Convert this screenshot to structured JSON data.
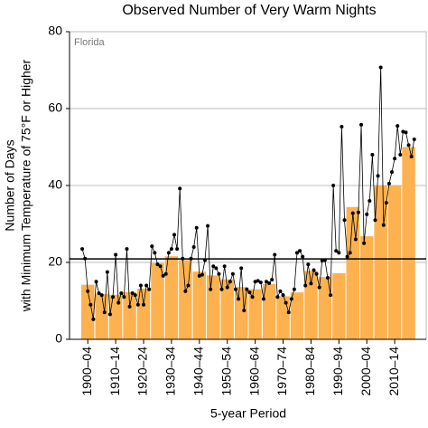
{
  "chart_data": {
    "type": "bar",
    "title": "Observed Number of Very Warm Nights",
    "annotation": "Florida",
    "xlabel": "5-year Period",
    "ylabel": [
      "Number of Days",
      "with Minimum Temperature of 75°F or Higher"
    ],
    "categories": [
      "1900–04",
      null,
      "1910–14",
      null,
      "1920–24",
      null,
      "1930–34",
      null,
      "1940–44",
      null,
      "1950–54",
      null,
      "1960–64",
      null,
      "1970–74",
      null,
      "1980–84",
      null,
      "1990–94",
      null,
      "2000–04",
      null,
      "2010–14",
      null
    ],
    "values": [
      14.2,
      11.8,
      11.6,
      12.3,
      13.2,
      19.8,
      21.6,
      20.6,
      17.6,
      16.6,
      15.6,
      13.6,
      13.0,
      14.4,
      11.2,
      12.2,
      17.8,
      16.2,
      17.2,
      34.4,
      26.8,
      40.0,
      40.0,
      50.0
    ],
    "color": "#fdb24f",
    "line_series": {
      "color": "#000000",
      "values": [
        23.5,
        21,
        12.5,
        9,
        5.2,
        15,
        12,
        11.5,
        7,
        17.5,
        6.5,
        11,
        22,
        9.5,
        12,
        11,
        23.5,
        8.5,
        12,
        11.5,
        9,
        14,
        9,
        14,
        13,
        24.2,
        22.5,
        19.5,
        19,
        16.5,
        17,
        22.5,
        23.5,
        27.2,
        23.5,
        39.2,
        21,
        12.5,
        14,
        21,
        24,
        29,
        16.5,
        16.8,
        20.6,
        29.5,
        13,
        19,
        18.5,
        17,
        13,
        19,
        13.5,
        15,
        17,
        13,
        10.5,
        18.5,
        7.5,
        13,
        12.2,
        11,
        15,
        15.2,
        14.8,
        10.5,
        15,
        14.6,
        15.5,
        22,
        11,
        12.5,
        11.5,
        9.5,
        7,
        10.5,
        13,
        22.5,
        23,
        21.5,
        14,
        19.5,
        14.5,
        18,
        17,
        13.5,
        20.5,
        20.6,
        16,
        11.5,
        40,
        23,
        22.5,
        55.3,
        31,
        21.5,
        22.5,
        32.8,
        26,
        33,
        55.8,
        25,
        32.5,
        36,
        48,
        31,
        42.5,
        70.7,
        29.7,
        35.5,
        40.5,
        43.5,
        47,
        55.5,
        48,
        54,
        53.8,
        50.5,
        47.5,
        52
      ]
    },
    "average": 20.9,
    "average_color": "#000000",
    "ylim": [
      0,
      80
    ],
    "yticks": [
      0,
      20,
      40,
      60,
      80
    ],
    "grid": true
  }
}
